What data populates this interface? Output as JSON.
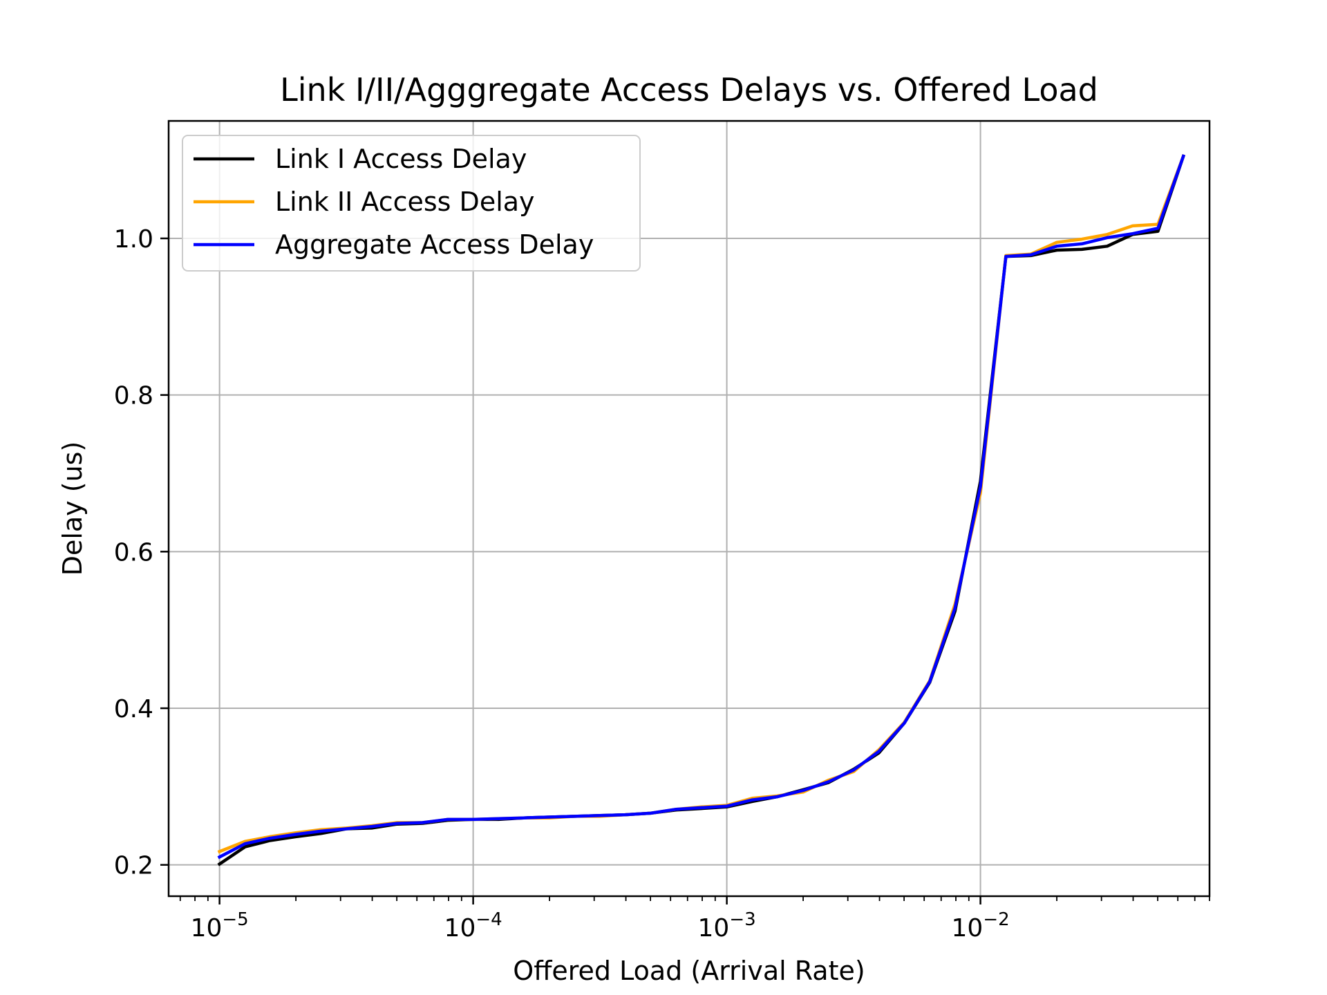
{
  "chart_data": {
    "type": "line",
    "title": "Link I/II/Agggregate Access Delays vs. Offered Load",
    "xlabel": "Offered Load (Arrival Rate)",
    "ylabel": "Delay (us)",
    "xscale": "log",
    "xlim": [
      6.3e-06,
      0.08
    ],
    "ylim": [
      0.16,
      1.15
    ],
    "xticks": [
      {
        "value": 1e-05,
        "base": "10",
        "exp": "−5"
      },
      {
        "value": 0.0001,
        "base": "10",
        "exp": "−4"
      },
      {
        "value": 0.001,
        "base": "10",
        "exp": "−3"
      },
      {
        "value": 0.01,
        "base": "10",
        "exp": "−2"
      }
    ],
    "yticks": [
      {
        "value": 0.2,
        "label": "0.2"
      },
      {
        "value": 0.4,
        "label": "0.4"
      },
      {
        "value": 0.6,
        "label": "0.6"
      },
      {
        "value": 0.8,
        "label": "0.8"
      },
      {
        "value": 1.0,
        "label": "1.0"
      }
    ],
    "grid": true,
    "legend_position": "top-left",
    "x": [
      1e-05,
      1.26e-05,
      1.58e-05,
      2e-05,
      2.51e-05,
      3.16e-05,
      3.98e-05,
      5.01e-05,
      6.31e-05,
      7.94e-05,
      0.0001,
      0.000126,
      0.000158,
      0.0002,
      0.000251,
      0.000316,
      0.000398,
      0.000501,
      0.000631,
      0.000794,
      0.001,
      0.00126,
      0.00158,
      0.002,
      0.00251,
      0.00316,
      0.00398,
      0.00501,
      0.00631,
      0.00794,
      0.01,
      0.0126,
      0.0158,
      0.02,
      0.0251,
      0.0316,
      0.0398,
      0.0501,
      0.0631
    ],
    "series": [
      {
        "name": "Link I Access Delay",
        "color": "#000000",
        "values": [
          0.201,
          0.223,
          0.231,
          0.236,
          0.24,
          0.246,
          0.247,
          0.252,
          0.253,
          0.257,
          0.258,
          0.258,
          0.26,
          0.261,
          0.262,
          0.263,
          0.264,
          0.266,
          0.27,
          0.272,
          0.274,
          0.281,
          0.287,
          0.296,
          0.305,
          0.322,
          0.343,
          0.381,
          0.433,
          0.524,
          0.69,
          0.977,
          0.978,
          0.985,
          0.986,
          0.99,
          1.005,
          1.009,
          1.105
        ]
      },
      {
        "name": "Link II Access Delay",
        "color": "#ffa500",
        "values": [
          0.217,
          0.23,
          0.236,
          0.241,
          0.245,
          0.247,
          0.25,
          0.254,
          0.254,
          0.258,
          0.258,
          0.259,
          0.26,
          0.26,
          0.262,
          0.262,
          0.264,
          0.266,
          0.271,
          0.274,
          0.276,
          0.285,
          0.288,
          0.293,
          0.308,
          0.319,
          0.347,
          0.382,
          0.435,
          0.533,
          0.675,
          0.978,
          0.98,
          0.995,
          0.999,
          1.005,
          1.016,
          1.018,
          1.105
        ]
      },
      {
        "name": "Aggregate Access Delay",
        "color": "#0000ff",
        "values": [
          0.21,
          0.227,
          0.234,
          0.239,
          0.243,
          0.246,
          0.249,
          0.253,
          0.254,
          0.258,
          0.258,
          0.259,
          0.26,
          0.261,
          0.262,
          0.263,
          0.264,
          0.266,
          0.271,
          0.273,
          0.275,
          0.283,
          0.287,
          0.295,
          0.306,
          0.321,
          0.345,
          0.381,
          0.434,
          0.528,
          0.683,
          0.977,
          0.979,
          0.99,
          0.993,
          1.001,
          1.006,
          1.013,
          1.105
        ]
      }
    ]
  }
}
